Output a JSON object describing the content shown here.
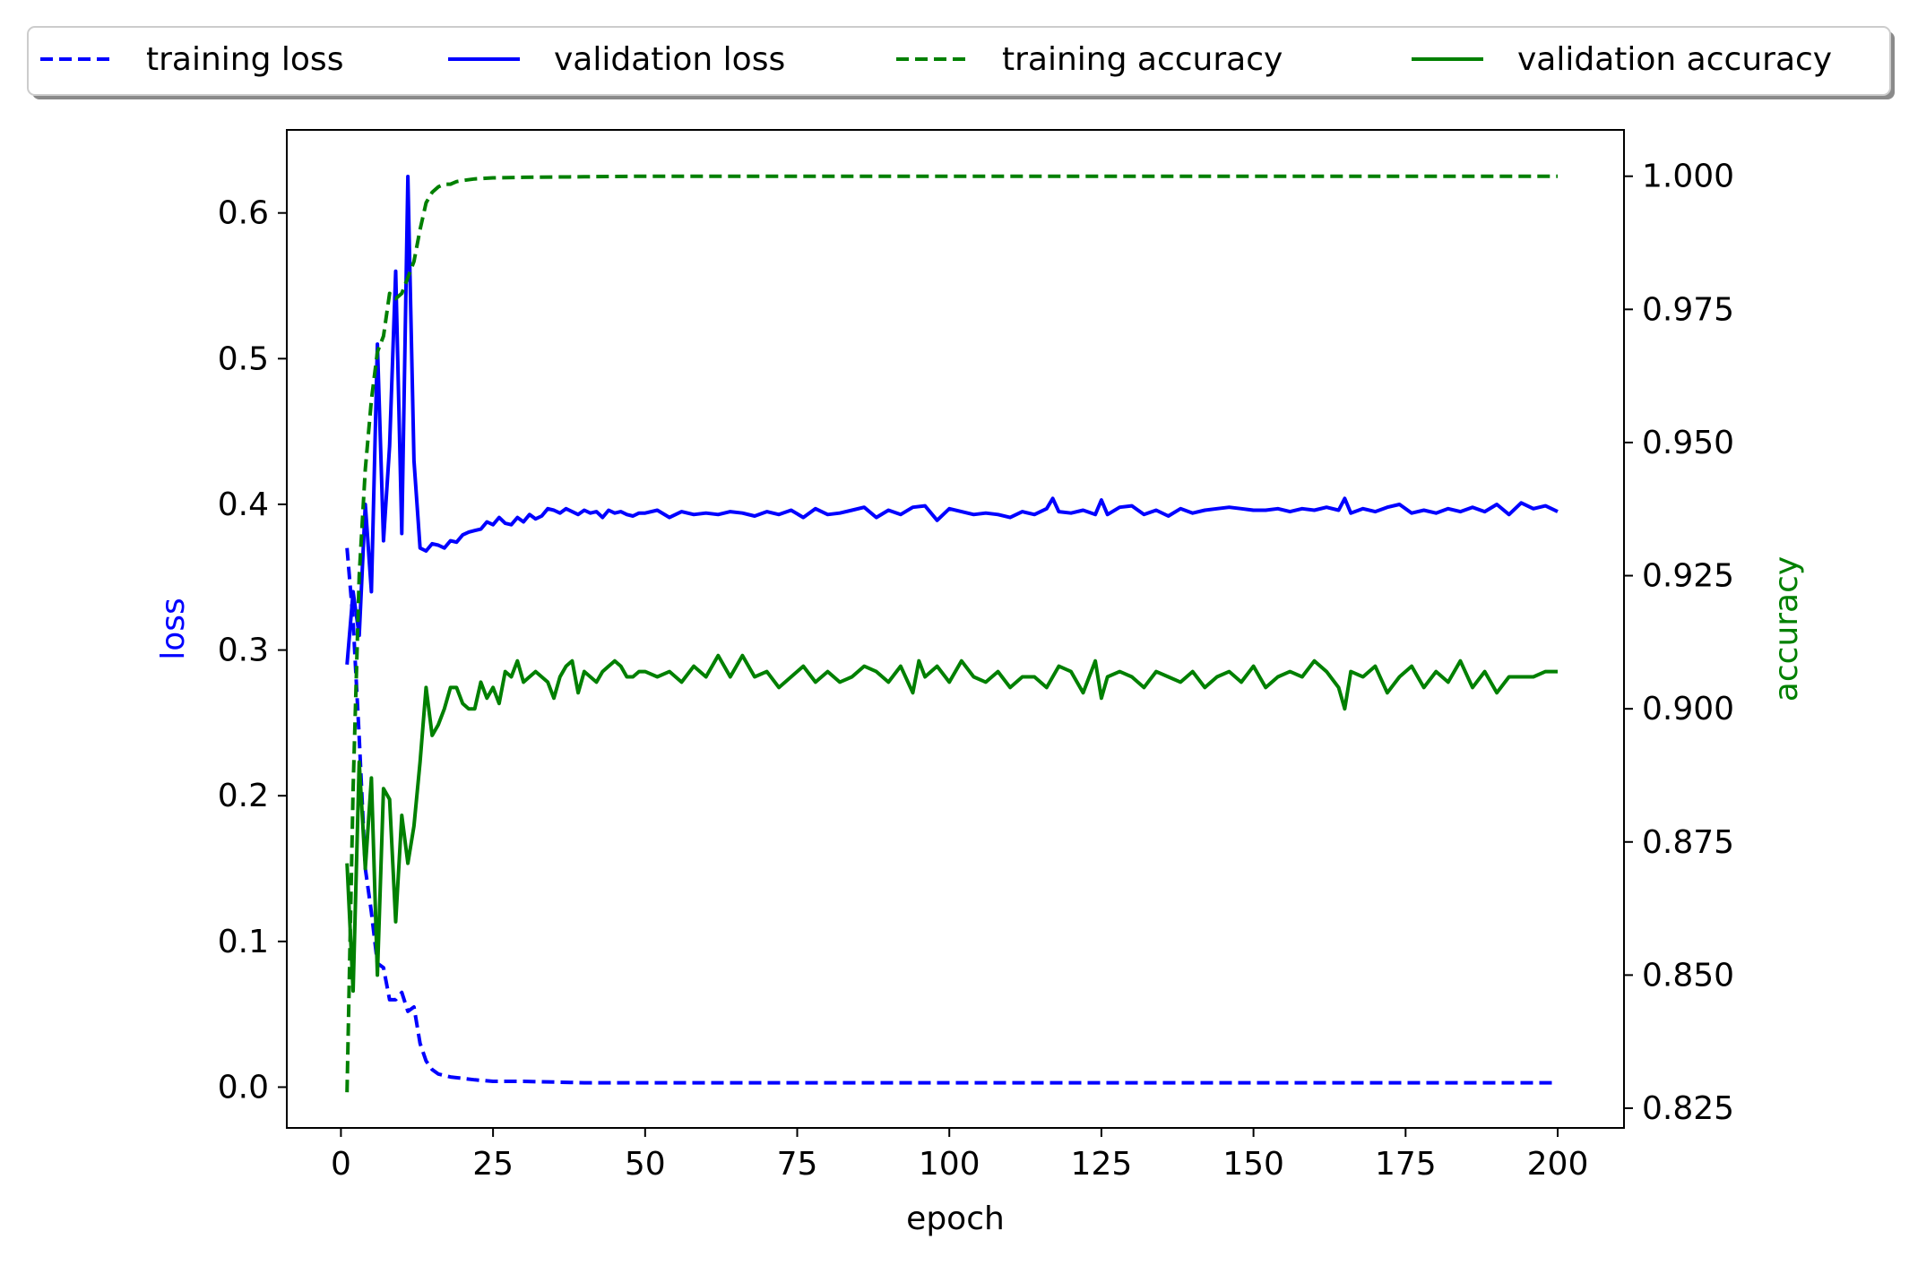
{
  "chart_data": {
    "type": "line",
    "xlabel": "epoch",
    "ylabel_left": "loss",
    "ylabel_right": "accuracy",
    "xlim": [
      -8.9,
      210.9
    ],
    "ylim_left": [
      -0.028,
      0.657
    ],
    "ylim_right": [
      0.8213,
      1.0087
    ],
    "x_ticks": [
      0,
      25,
      50,
      75,
      100,
      125,
      150,
      175,
      200
    ],
    "y_left_ticks": [
      "0.0",
      "0.1",
      "0.2",
      "0.3",
      "0.4",
      "0.5",
      "0.6"
    ],
    "y_right_ticks": [
      "0.825",
      "0.850",
      "0.875",
      "0.900",
      "0.925",
      "0.950",
      "0.975",
      "1.000"
    ],
    "grid": false,
    "legend_placement": "top, outside axes, single row",
    "series": [
      {
        "name": "training loss",
        "axis": "left",
        "color": "#0000ff",
        "dash": true,
        "x": [
          1,
          2,
          3,
          4,
          5,
          6,
          7,
          8,
          9,
          10,
          11,
          12,
          13,
          14,
          15,
          16,
          17,
          18,
          20,
          22,
          25,
          30,
          40,
          50,
          60,
          75,
          100,
          125,
          150,
          175,
          200
        ],
        "y": [
          0.37,
          0.32,
          0.24,
          0.15,
          0.12,
          0.085,
          0.082,
          0.06,
          0.06,
          0.065,
          0.052,
          0.055,
          0.03,
          0.018,
          0.012,
          0.009,
          0.008,
          0.007,
          0.006,
          0.005,
          0.004,
          0.004,
          0.003,
          0.003,
          0.003,
          0.003,
          0.003,
          0.003,
          0.003,
          0.003,
          0.003
        ]
      },
      {
        "name": "validation loss",
        "axis": "left",
        "color": "#0000ff",
        "dash": false,
        "x": [
          1,
          2,
          3,
          4,
          5,
          6,
          7,
          8,
          9,
          10,
          11,
          12,
          13,
          14,
          15,
          16,
          17,
          18,
          19,
          20,
          21,
          22,
          23,
          24,
          25,
          26,
          27,
          28,
          29,
          30,
          31,
          32,
          33,
          34,
          35,
          36,
          37,
          38,
          39,
          40,
          41,
          42,
          43,
          44,
          45,
          46,
          47,
          48,
          49,
          50,
          52,
          54,
          56,
          58,
          60,
          62,
          64,
          66,
          68,
          70,
          72,
          74,
          76,
          78,
          80,
          82,
          84,
          86,
          88,
          90,
          92,
          94,
          96,
          98,
          100,
          102,
          104,
          106,
          108,
          110,
          112,
          114,
          116,
          117,
          118,
          120,
          122,
          124,
          125,
          126,
          128,
          130,
          132,
          134,
          136,
          138,
          140,
          142,
          144,
          146,
          148,
          150,
          152,
          154,
          156,
          158,
          160,
          162,
          164,
          165,
          166,
          168,
          170,
          172,
          174,
          176,
          178,
          180,
          182,
          184,
          186,
          188,
          190,
          192,
          194,
          196,
          198,
          200
        ],
        "y": [
          0.29,
          0.34,
          0.31,
          0.4,
          0.34,
          0.51,
          0.375,
          0.44,
          0.56,
          0.38,
          0.625,
          0.43,
          0.37,
          0.368,
          0.373,
          0.372,
          0.37,
          0.375,
          0.374,
          0.379,
          0.381,
          0.382,
          0.383,
          0.388,
          0.386,
          0.391,
          0.387,
          0.386,
          0.391,
          0.388,
          0.393,
          0.39,
          0.392,
          0.397,
          0.396,
          0.394,
          0.397,
          0.395,
          0.393,
          0.396,
          0.394,
          0.395,
          0.391,
          0.396,
          0.394,
          0.395,
          0.393,
          0.392,
          0.394,
          0.394,
          0.396,
          0.391,
          0.395,
          0.393,
          0.394,
          0.393,
          0.395,
          0.394,
          0.392,
          0.395,
          0.393,
          0.396,
          0.391,
          0.397,
          0.393,
          0.394,
          0.396,
          0.398,
          0.391,
          0.396,
          0.393,
          0.398,
          0.399,
          0.389,
          0.397,
          0.395,
          0.393,
          0.394,
          0.393,
          0.391,
          0.395,
          0.393,
          0.397,
          0.404,
          0.395,
          0.394,
          0.396,
          0.393,
          0.403,
          0.393,
          0.398,
          0.399,
          0.393,
          0.396,
          0.392,
          0.397,
          0.394,
          0.396,
          0.397,
          0.398,
          0.397,
          0.396,
          0.396,
          0.397,
          0.395,
          0.397,
          0.396,
          0.398,
          0.396,
          0.404,
          0.394,
          0.397,
          0.395,
          0.398,
          0.4,
          0.394,
          0.396,
          0.394,
          0.397,
          0.395,
          0.398,
          0.395,
          0.4,
          0.393,
          0.401,
          0.397,
          0.399,
          0.395
        ]
      },
      {
        "name": "training accuracy",
        "axis": "right",
        "color": "#008000",
        "dash": true,
        "x": [
          1,
          2,
          3,
          4,
          5,
          6,
          7,
          8,
          9,
          10,
          11,
          12,
          13,
          14,
          15,
          16,
          17,
          18,
          19,
          20,
          22,
          25,
          30,
          40,
          50,
          60,
          75,
          100,
          125,
          150,
          175,
          200
        ],
        "y": [
          0.828,
          0.885,
          0.925,
          0.945,
          0.958,
          0.967,
          0.97,
          0.978,
          0.977,
          0.978,
          0.981,
          0.984,
          0.99,
          0.995,
          0.997,
          0.998,
          0.9985,
          0.9985,
          0.999,
          0.9992,
          0.9995,
          0.9997,
          0.9998,
          0.9999,
          1.0,
          1.0,
          1.0,
          1.0,
          1.0,
          1.0,
          1.0,
          1.0
        ]
      },
      {
        "name": "validation accuracy",
        "axis": "right",
        "color": "#008000",
        "dash": false,
        "x": [
          1,
          2,
          3,
          4,
          5,
          6,
          7,
          8,
          9,
          10,
          11,
          12,
          13,
          14,
          15,
          16,
          17,
          18,
          19,
          20,
          21,
          22,
          23,
          24,
          25,
          26,
          27,
          28,
          29,
          30,
          31,
          32,
          33,
          34,
          35,
          36,
          37,
          38,
          39,
          40,
          41,
          42,
          43,
          44,
          45,
          46,
          47,
          48,
          49,
          50,
          52,
          54,
          56,
          58,
          60,
          62,
          64,
          66,
          68,
          70,
          72,
          74,
          76,
          78,
          80,
          82,
          84,
          86,
          88,
          90,
          92,
          94,
          95,
          96,
          98,
          100,
          102,
          104,
          106,
          108,
          110,
          112,
          114,
          116,
          118,
          120,
          122,
          124,
          125,
          126,
          128,
          130,
          132,
          134,
          136,
          138,
          140,
          142,
          144,
          146,
          148,
          150,
          152,
          154,
          156,
          158,
          160,
          162,
          164,
          165,
          166,
          168,
          170,
          172,
          174,
          176,
          178,
          180,
          182,
          184,
          186,
          188,
          190,
          192,
          194,
          196,
          198,
          200
        ],
        "y": [
          0.871,
          0.847,
          0.89,
          0.87,
          0.887,
          0.85,
          0.885,
          0.883,
          0.86,
          0.88,
          0.871,
          0.878,
          0.89,
          0.904,
          0.895,
          0.897,
          0.9,
          0.904,
          0.904,
          0.901,
          0.9,
          0.9,
          0.905,
          0.902,
          0.904,
          0.901,
          0.907,
          0.906,
          0.909,
          0.905,
          0.906,
          0.907,
          0.906,
          0.905,
          0.902,
          0.906,
          0.908,
          0.909,
          0.903,
          0.907,
          0.906,
          0.905,
          0.907,
          0.908,
          0.909,
          0.908,
          0.906,
          0.906,
          0.907,
          0.907,
          0.906,
          0.907,
          0.905,
          0.908,
          0.906,
          0.91,
          0.906,
          0.91,
          0.906,
          0.907,
          0.904,
          0.906,
          0.908,
          0.905,
          0.907,
          0.905,
          0.906,
          0.908,
          0.907,
          0.905,
          0.908,
          0.903,
          0.909,
          0.906,
          0.908,
          0.905,
          0.909,
          0.906,
          0.905,
          0.907,
          0.904,
          0.906,
          0.906,
          0.904,
          0.908,
          0.907,
          0.903,
          0.909,
          0.902,
          0.906,
          0.907,
          0.906,
          0.904,
          0.907,
          0.906,
          0.905,
          0.907,
          0.904,
          0.906,
          0.907,
          0.905,
          0.908,
          0.904,
          0.906,
          0.907,
          0.906,
          0.909,
          0.907,
          0.904,
          0.9,
          0.907,
          0.906,
          0.908,
          0.903,
          0.906,
          0.908,
          0.904,
          0.907,
          0.905,
          0.909,
          0.904,
          0.907,
          0.903,
          0.906,
          0.906,
          0.906,
          0.907,
          0.907
        ]
      }
    ]
  }
}
